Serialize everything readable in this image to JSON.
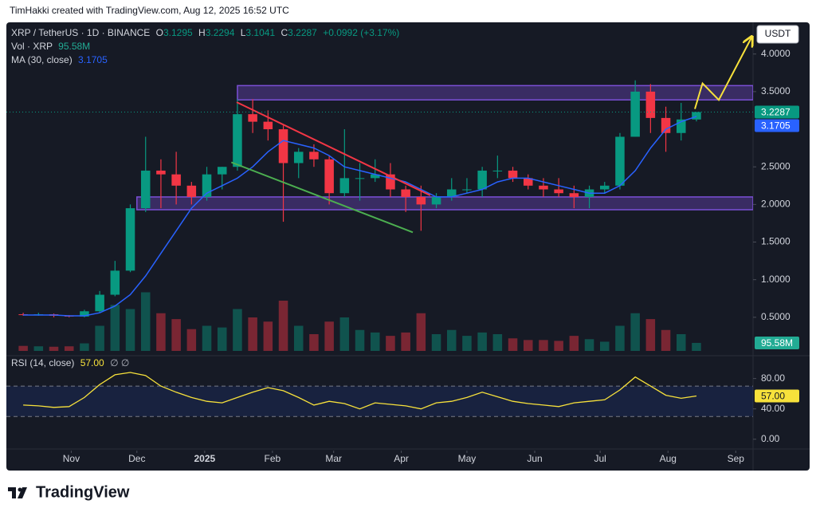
{
  "header": {
    "author_line": "TimHakki created with TradingView.com, Aug 12, 2025 16:52 UTC"
  },
  "footer": {
    "brand": "TradingView"
  },
  "chart_data": {
    "type": "candlestick",
    "symbol": "XRP / TetherUS · 1D · BINANCE",
    "ohlc_letters": [
      "O",
      "H",
      "L",
      "C"
    ],
    "ohlc_legend": [
      3.1295,
      3.2294,
      3.1041,
      3.2287
    ],
    "change": "+0.0992 (+3.17%)",
    "currency": "USDT",
    "up_color": "#089981",
    "down_color": "#f23645",
    "grid": false,
    "xlim": [
      -1.1,
      47.7
    ],
    "xticks": [
      {
        "value": 3.14,
        "label": "Nov"
      },
      {
        "value": 7.43,
        "label": "Dec"
      },
      {
        "value": 11.86,
        "label": "2025"
      },
      {
        "value": 16.29,
        "label": "Feb"
      },
      {
        "value": 20.29,
        "label": "Mar"
      },
      {
        "value": 24.71,
        "label": "Apr"
      },
      {
        "value": 29,
        "label": "May"
      },
      {
        "value": 33.43,
        "label": "Jun"
      },
      {
        "value": 37.71,
        "label": "Jul"
      },
      {
        "value": 42.14,
        "label": "Aug"
      },
      {
        "value": 46.57,
        "label": "Sep"
      }
    ],
    "ylim": [
      0,
      4.4
    ],
    "yticks": [
      {
        "value": 0.5,
        "label": "0.5000"
      },
      {
        "value": 1,
        "label": "1.0000"
      },
      {
        "value": 1.5,
        "label": "1.5000"
      },
      {
        "value": 2,
        "label": "2.0000"
      },
      {
        "value": 2.5,
        "label": "2.5000"
      },
      {
        "value": 3.5,
        "label": "3.5000"
      },
      {
        "value": 4,
        "label": "4.0000"
      }
    ],
    "ohlc": {
      "open": [
        0.54,
        0.53,
        0.54,
        0.52,
        0.51,
        0.58,
        0.8,
        1.12,
        1.95,
        2.45,
        2.4,
        2.25,
        2.1,
        2.4,
        2.5,
        3.2,
        3.1,
        3.0,
        2.55,
        2.7,
        2.6,
        2.15,
        2.35,
        2.35,
        2.4,
        2.2,
        2.1,
        2.0,
        2.1,
        2.2,
        2.2,
        2.45,
        2.45,
        2.35,
        2.25,
        2.2,
        2.15,
        2.1,
        2.2,
        2.25,
        2.9,
        3.5,
        3.15,
        2.95,
        3.1295
      ],
      "high": [
        0.56,
        0.56,
        0.55,
        0.53,
        0.6,
        0.85,
        1.25,
        2.0,
        2.9,
        2.6,
        2.7,
        2.3,
        2.5,
        2.5,
        3.4,
        3.4,
        3.25,
        3.05,
        2.75,
        2.8,
        2.65,
        3.0,
        2.55,
        2.6,
        2.55,
        2.25,
        2.25,
        2.15,
        2.35,
        2.35,
        2.5,
        2.65,
        2.5,
        2.4,
        2.35,
        2.35,
        2.25,
        2.25,
        2.3,
        2.95,
        3.65,
        3.6,
        3.3,
        3.35,
        3.2294
      ],
      "low": [
        0.52,
        0.52,
        0.5,
        0.5,
        0.5,
        0.56,
        0.78,
        1.1,
        1.9,
        1.95,
        2.0,
        2.0,
        2.05,
        2.2,
        2.45,
        2.95,
        2.85,
        1.77,
        2.35,
        2.5,
        2.0,
        2.1,
        2.05,
        2.3,
        2.1,
        1.9,
        1.65,
        1.95,
        2.05,
        2.15,
        2.1,
        2.35,
        2.3,
        2.2,
        2.1,
        2.1,
        1.95,
        1.95,
        2.15,
        2.2,
        2.9,
        2.95,
        2.7,
        2.85,
        3.1041
      ],
      "close": [
        0.53,
        0.54,
        0.52,
        0.51,
        0.58,
        0.8,
        1.12,
        1.95,
        2.45,
        2.4,
        2.25,
        2.1,
        2.4,
        2.5,
        3.2,
        3.1,
        3.0,
        2.55,
        2.7,
        2.6,
        2.15,
        2.35,
        2.35,
        2.4,
        2.2,
        2.1,
        2.0,
        2.1,
        2.2,
        2.2,
        2.45,
        2.45,
        2.35,
        2.25,
        2.2,
        2.15,
        2.1,
        2.2,
        2.25,
        2.9,
        3.5,
        3.15,
        2.95,
        3.13,
        3.2287
      ]
    },
    "ma": {
      "name": "MA (30, close)",
      "color": "#2962ff",
      "values": [
        0.53,
        0.53,
        0.53,
        0.52,
        0.52,
        0.56,
        0.65,
        0.8,
        1.05,
        1.35,
        1.65,
        1.95,
        2.15,
        2.25,
        2.35,
        2.5,
        2.7,
        2.85,
        2.8,
        2.75,
        2.65,
        2.5,
        2.45,
        2.4,
        2.35,
        2.3,
        2.2,
        2.1,
        2.1,
        2.15,
        2.2,
        2.3,
        2.35,
        2.35,
        2.3,
        2.25,
        2.2,
        2.15,
        2.15,
        2.25,
        2.45,
        2.75,
        3.0,
        3.1,
        3.1705
      ]
    },
    "volume": {
      "name": "Vol · XRP",
      "color": "#22ab94",
      "ylim": [
        0,
        800
      ],
      "values": [
        60,
        55,
        50,
        55,
        90,
        300,
        550,
        500,
        700,
        450,
        380,
        260,
        300,
        280,
        500,
        400,
        350,
        600,
        300,
        200,
        350,
        400,
        250,
        220,
        180,
        220,
        450,
        200,
        250,
        180,
        220,
        200,
        150,
        130,
        130,
        120,
        180,
        140,
        110,
        300,
        450,
        380,
        250,
        200,
        95.58
      ],
      "value_labels": [
        null,
        null,
        null,
        null,
        null,
        null,
        null,
        null,
        null,
        null,
        null,
        null,
        null,
        null,
        null,
        null,
        null,
        null,
        null,
        null,
        null,
        null,
        null,
        null,
        null,
        null,
        null,
        null,
        null,
        null,
        null,
        null,
        null,
        null,
        null,
        null,
        null,
        null,
        null,
        null,
        null,
        null,
        null,
        null,
        "95.58M"
      ]
    },
    "rsi": {
      "name": "RSI (14, close)",
      "icons": "∅ ∅",
      "color": "#f7e13b",
      "ylim": [
        -15,
        108
      ],
      "yticks": [
        {
          "value": 80,
          "label": "80.00"
        },
        {
          "value": 40,
          "label": "40.00"
        },
        {
          "value": 0,
          "label": "0.00"
        }
      ],
      "bands": [
        30,
        70
      ],
      "values": [
        45,
        44,
        42,
        43,
        55,
        72,
        85,
        88,
        84,
        70,
        62,
        55,
        50,
        48,
        55,
        62,
        68,
        64,
        55,
        45,
        50,
        47,
        40,
        48,
        46,
        44,
        40,
        48,
        50,
        55,
        62,
        56,
        50,
        47,
        45,
        43,
        48,
        50,
        52,
        65,
        82,
        70,
        58,
        54,
        57
      ],
      "value_labels": [
        null,
        null,
        null,
        null,
        null,
        null,
        null,
        null,
        null,
        null,
        null,
        null,
        null,
        null,
        null,
        null,
        null,
        null,
        null,
        null,
        null,
        null,
        null,
        null,
        null,
        null,
        null,
        null,
        null,
        null,
        null,
        null,
        null,
        null,
        null,
        null,
        null,
        null,
        null,
        null,
        null,
        null,
        null,
        null,
        "57.00"
      ]
    },
    "drawings": {
      "zones": [
        {
          "x": 14.0,
          "y": [
            3.39,
            3.58
          ],
          "color": "#7b4fd6"
        },
        {
          "x": 7.43,
          "y": [
            1.93,
            2.1
          ],
          "color": "#7b4fd6"
        }
      ],
      "lines": [
        {
          "color": "#f23645",
          "points": [
            [
              13.95,
              3.36
            ],
            [
              26.6,
              2.12
            ]
          ]
        },
        {
          "color": "#4caf50",
          "points": [
            [
              13.6,
              2.56
            ],
            [
              25.46,
              1.63
            ]
          ]
        },
        {
          "color": "#f7e13b",
          "arrow": true,
          "points": [
            [
              43.9,
              3.27
            ],
            [
              44.4,
              3.61
            ],
            [
              45.46,
              3.39
            ],
            [
              47.6,
              4.22
            ]
          ]
        }
      ]
    }
  }
}
